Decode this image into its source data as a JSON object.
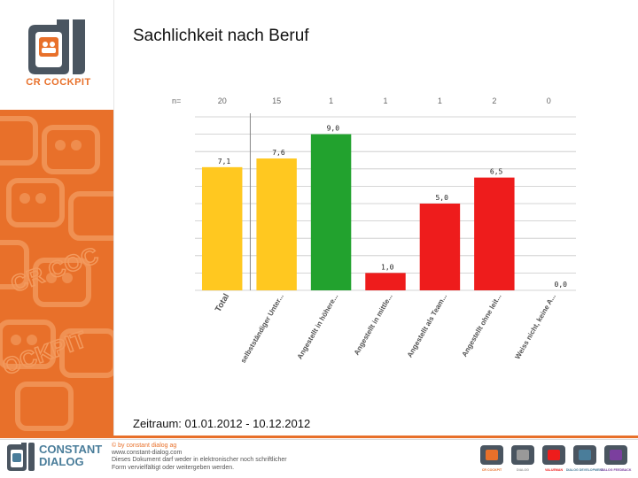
{
  "title": "Sachlichkeit nach Beruf",
  "period": "Zeitraum: 01.01.2012 - 10.12.2012",
  "logo": {
    "icon": "cr-cockpit-logo",
    "text": "CR COCKPIT"
  },
  "footer": {
    "brand_line1": "CONSTANT",
    "brand_line2": "DIALOG",
    "copyright": "© by constant dialog ag",
    "website": "www.constant-dialog.com",
    "notice1": "Dieses Dokument darf weder in elektronischer noch schriftlicher",
    "notice2": "Form vervielfältigt oder weitergeben werden.",
    "products": [
      "CR COCKPIT",
      "DIALOG",
      "VALUEMAN",
      "DIALOG DEVELOPMENT",
      "DIALOG FEEDBACK"
    ]
  },
  "colors": {
    "accent": "#e8702a",
    "yellow": "#ffc820",
    "green": "#22a22e",
    "red": "#ee1c1c",
    "brand_blue": "#4a7d9a"
  },
  "chart_data": {
    "type": "bar",
    "title": "Sachlichkeit nach Beruf",
    "n_label": "n=",
    "categories": [
      "Total",
      "selbstständiger Unter...",
      "Angestellt in höhere...",
      "Angestellt in mittle...",
      "Angestellt als Team...",
      "Angestellt ohne leit...",
      "Weiss nicht, keine A..."
    ],
    "n_values": [
      "20",
      "15",
      "1",
      "1",
      "1",
      "2",
      "0"
    ],
    "values": [
      7.1,
      7.6,
      9.0,
      1.0,
      5.0,
      6.5,
      0.0
    ],
    "value_labels": [
      "7,1",
      "7,6",
      "9,0",
      "1,0",
      "5,0",
      "6,5",
      "0,0"
    ],
    "bar_colors": [
      "#ffc820",
      "#ffc820",
      "#22a22e",
      "#ee1c1c",
      "#ee1c1c",
      "#ee1c1c",
      "#ee1c1c"
    ],
    "ylim": [
      0,
      10
    ],
    "grid": true,
    "xlabel": "",
    "ylabel": ""
  }
}
